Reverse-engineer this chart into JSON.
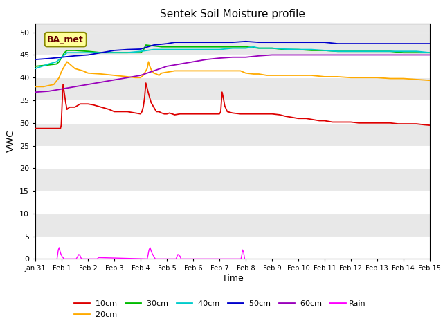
{
  "title": "Sentek Soil Moisture profile",
  "xlabel": "Time",
  "ylabel": "VWC",
  "station_label": "BA_met",
  "ylim": [
    0,
    52
  ],
  "yticks": [
    0,
    5,
    10,
    15,
    20,
    25,
    30,
    35,
    40,
    45,
    50
  ],
  "xlim": [
    0,
    15
  ],
  "xtick_labels": [
    "Jan 31",
    "Feb 1",
    "Feb 2",
    "Feb 3",
    "Feb 4",
    "Feb 5",
    "Feb 6",
    "Feb 7",
    "Feb 8",
    "Feb 9",
    "Feb 10",
    "Feb 11",
    "Feb 12",
    "Feb 13",
    "Feb 14",
    "Feb 15"
  ],
  "plot_bgcolor": "#e8e8e8",
  "band_color_light": "#e8e8e8",
  "band_color_dark": "#d8d8d8",
  "grid_color": "#ffffff",
  "fig_bgcolor": "#ffffff",
  "colors": {
    "10cm": "#dd0000",
    "20cm": "#ffaa00",
    "30cm": "#00bb00",
    "40cm": "#00cccc",
    "50cm": "#0000cc",
    "60cm": "#9900bb",
    "rain": "#ff00ff"
  },
  "series": {
    "10cm": {
      "x": [
        0.0,
        0.3,
        0.95,
        0.98,
        1.02,
        1.05,
        1.1,
        1.15,
        1.2,
        1.3,
        1.5,
        1.7,
        2.0,
        2.2,
        2.5,
        2.8,
        3.0,
        3.3,
        3.5,
        3.8,
        4.0,
        4.05,
        4.1,
        4.15,
        4.2,
        4.3,
        4.35,
        4.4,
        4.5,
        4.55,
        4.6,
        4.7,
        4.8,
        4.9,
        5.0,
        5.1,
        5.2,
        5.3,
        5.5,
        5.8,
        6.0,
        6.3,
        6.5,
        6.8,
        7.0,
        7.05,
        7.1,
        7.15,
        7.2,
        7.3,
        7.5,
        7.8,
        8.0,
        8.3,
        8.5,
        8.8,
        9.0,
        9.3,
        9.5,
        9.8,
        10.0,
        10.3,
        10.5,
        10.8,
        11.0,
        11.3,
        11.5,
        11.8,
        12.0,
        12.3,
        12.5,
        12.8,
        13.0,
        13.3,
        13.5,
        13.8,
        14.0,
        14.3,
        14.5,
        14.8,
        15.0
      ],
      "y": [
        28.8,
        28.8,
        28.8,
        29.5,
        35.0,
        38.5,
        36.5,
        34.5,
        33.0,
        33.5,
        33.5,
        34.2,
        34.2,
        34.0,
        33.5,
        33.0,
        32.5,
        32.5,
        32.5,
        32.2,
        32.0,
        32.5,
        33.5,
        35.5,
        38.8,
        36.5,
        35.5,
        34.5,
        33.5,
        33.0,
        32.5,
        32.5,
        32.2,
        32.0,
        32.0,
        32.2,
        32.0,
        31.8,
        32.0,
        32.0,
        32.0,
        32.0,
        32.0,
        32.0,
        32.0,
        32.5,
        36.8,
        35.5,
        33.8,
        32.5,
        32.2,
        32.0,
        32.0,
        32.0,
        32.0,
        32.0,
        32.0,
        31.8,
        31.5,
        31.2,
        31.0,
        31.0,
        30.8,
        30.5,
        30.5,
        30.2,
        30.2,
        30.2,
        30.2,
        30.0,
        30.0,
        30.0,
        30.0,
        30.0,
        30.0,
        29.8,
        29.8,
        29.8,
        29.8,
        29.6,
        29.5
      ]
    },
    "20cm": {
      "x": [
        0.0,
        0.3,
        0.7,
        0.9,
        1.0,
        1.1,
        1.2,
        1.5,
        1.8,
        2.0,
        2.5,
        3.0,
        3.5,
        3.8,
        4.0,
        4.1,
        4.2,
        4.25,
        4.3,
        4.35,
        4.4,
        4.5,
        4.6,
        4.7,
        4.8,
        5.0,
        5.3,
        5.5,
        5.8,
        6.0,
        6.3,
        6.5,
        6.8,
        7.0,
        7.2,
        7.5,
        7.8,
        8.0,
        8.3,
        8.5,
        8.8,
        9.0,
        9.5,
        10.0,
        10.5,
        11.0,
        11.5,
        12.0,
        12.5,
        13.0,
        13.5,
        14.0,
        14.5,
        15.0
      ],
      "y": [
        38.0,
        38.0,
        38.5,
        40.0,
        41.5,
        42.5,
        43.5,
        42.0,
        41.5,
        41.0,
        40.8,
        40.5,
        40.2,
        40.0,
        40.0,
        40.5,
        41.5,
        42.0,
        43.5,
        42.5,
        41.8,
        41.0,
        40.8,
        40.5,
        41.0,
        41.2,
        41.5,
        41.5,
        41.5,
        41.5,
        41.5,
        41.5,
        41.5,
        41.5,
        41.5,
        41.5,
        41.5,
        41.0,
        40.8,
        40.8,
        40.5,
        40.5,
        40.5,
        40.5,
        40.5,
        40.2,
        40.2,
        40.0,
        40.0,
        40.0,
        39.8,
        39.8,
        39.6,
        39.4
      ]
    },
    "30cm": {
      "x": [
        0.0,
        0.5,
        0.8,
        0.9,
        1.0,
        1.05,
        1.1,
        1.2,
        1.5,
        2.0,
        2.5,
        3.0,
        3.5,
        4.0,
        4.1,
        4.2,
        4.5,
        4.8,
        5.0,
        5.5,
        6.0,
        6.5,
        7.0,
        7.5,
        8.0,
        8.5,
        9.0,
        9.5,
        10.0,
        10.5,
        11.0,
        11.5,
        12.0,
        12.5,
        13.0,
        13.5,
        14.0,
        14.5,
        15.0
      ],
      "y": [
        42.5,
        42.8,
        43.0,
        43.5,
        44.5,
        45.0,
        45.5,
        46.0,
        46.0,
        45.8,
        45.5,
        45.5,
        45.5,
        45.5,
        46.0,
        47.2,
        47.0,
        46.8,
        46.8,
        46.8,
        46.8,
        46.8,
        46.8,
        46.8,
        46.8,
        46.5,
        46.5,
        46.2,
        46.2,
        46.0,
        46.0,
        45.8,
        45.8,
        45.8,
        45.8,
        45.8,
        45.5,
        45.5,
        45.5
      ]
    },
    "40cm": {
      "x": [
        0.0,
        0.5,
        0.8,
        0.9,
        1.0,
        1.1,
        1.2,
        1.5,
        2.0,
        2.5,
        3.0,
        3.5,
        4.0,
        4.5,
        5.0,
        5.5,
        6.0,
        6.5,
        7.0,
        7.5,
        8.0,
        8.3,
        8.5,
        9.0,
        9.5,
        10.0,
        10.5,
        11.0,
        11.5,
        12.0,
        12.5,
        13.0,
        13.5,
        14.0,
        14.5,
        15.0
      ],
      "y": [
        42.0,
        43.0,
        43.5,
        44.0,
        44.5,
        45.0,
        45.5,
        45.5,
        45.5,
        45.5,
        45.5,
        45.5,
        45.8,
        46.2,
        46.2,
        46.2,
        46.2,
        46.2,
        46.2,
        46.5,
        46.5,
        46.8,
        46.5,
        46.5,
        46.3,
        46.2,
        46.2,
        46.0,
        45.8,
        45.8,
        45.8,
        45.8,
        45.8,
        45.8,
        45.8,
        45.5
      ]
    },
    "50cm": {
      "x": [
        0.0,
        0.5,
        1.0,
        1.5,
        2.0,
        2.5,
        3.0,
        3.5,
        4.0,
        4.5,
        5.0,
        5.3,
        5.5,
        6.0,
        6.5,
        7.0,
        7.5,
        8.0,
        8.5,
        9.0,
        9.5,
        10.0,
        10.5,
        11.0,
        11.5,
        12.0,
        12.5,
        13.0,
        13.5,
        14.0,
        14.5,
        15.0
      ],
      "y": [
        44.0,
        44.2,
        44.5,
        44.8,
        45.0,
        45.5,
        46.0,
        46.2,
        46.3,
        47.2,
        47.5,
        47.8,
        47.8,
        47.8,
        47.8,
        47.8,
        47.8,
        48.0,
        47.8,
        47.8,
        47.8,
        47.8,
        47.8,
        47.8,
        47.5,
        47.5,
        47.5,
        47.5,
        47.5,
        47.5,
        47.5,
        47.5
      ]
    },
    "60cm": {
      "x": [
        0.0,
        0.5,
        1.0,
        1.5,
        2.0,
        2.5,
        3.0,
        3.5,
        4.0,
        4.5,
        5.0,
        5.5,
        6.0,
        6.5,
        7.0,
        7.5,
        8.0,
        8.5,
        9.0,
        9.5,
        10.0,
        10.5,
        11.0,
        11.5,
        12.0,
        12.5,
        13.0,
        13.5,
        14.0,
        14.5,
        15.0
      ],
      "y": [
        36.8,
        37.0,
        37.5,
        38.0,
        38.5,
        39.0,
        39.5,
        40.0,
        40.5,
        41.5,
        42.5,
        43.0,
        43.5,
        44.0,
        44.3,
        44.5,
        44.5,
        44.8,
        45.0,
        45.0,
        45.0,
        45.0,
        45.0,
        45.0,
        45.0,
        45.0,
        45.0,
        45.0,
        45.0,
        45.0,
        45.0
      ]
    },
    "rain_x": [
      0.82,
      0.84,
      0.87,
      0.9,
      0.93,
      0.96,
      0.99,
      1.02,
      1.05,
      1.08,
      1.55,
      1.6,
      1.65,
      1.7,
      1.75,
      2.35,
      2.4,
      4.25,
      4.28,
      4.32,
      4.36,
      4.4,
      4.44,
      4.48,
      4.52,
      4.56,
      5.35,
      5.38,
      5.42,
      5.5,
      5.54,
      7.82,
      7.85,
      7.88,
      7.92,
      7.96
    ],
    "rain_y": [
      0.0,
      0.8,
      2.0,
      2.5,
      1.8,
      1.2,
      0.8,
      0.5,
      0.3,
      0.0,
      0.0,
      0.5,
      1.0,
      0.7,
      0.0,
      0.0,
      0.3,
      0.0,
      0.8,
      2.0,
      2.5,
      1.8,
      1.2,
      0.8,
      0.4,
      0.0,
      0.0,
      0.5,
      1.0,
      0.6,
      0.0,
      0.0,
      0.8,
      2.0,
      1.5,
      0.0
    ]
  }
}
